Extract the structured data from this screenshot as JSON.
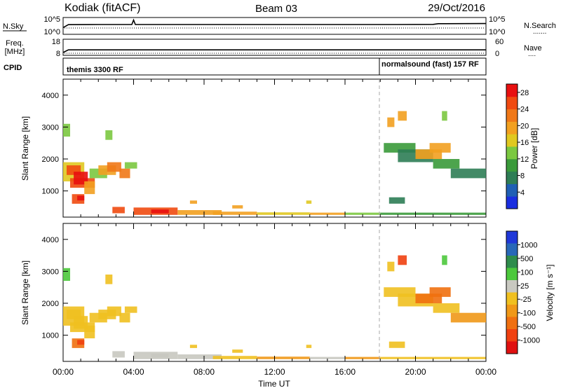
{
  "header": {
    "site": "Kodiak (fitACF)",
    "beam": "Beam 03",
    "date": "29/Oct/2016"
  },
  "noise_panel": {
    "left_label": "N.Sky",
    "right_label": "N.Search",
    "left_ticks": [
      "10^5",
      "10^0"
    ],
    "right_ticks": [
      "10^5",
      "10^0"
    ]
  },
  "freq_panel": {
    "left_label_1": "Freq.",
    "left_label_2": "[MHz]",
    "right_label": "Nave",
    "left_ticks": [
      "18",
      "8"
    ],
    "right_ticks": [
      "60",
      "0"
    ]
  },
  "cpid_panel": {
    "label": "CPID",
    "modes": [
      {
        "text": "themis 3300 RF",
        "start_hour": 0
      },
      {
        "text": "normalsound (fast) 157 RF",
        "start_hour": 18
      }
    ]
  },
  "time_axis": {
    "label": "Time UT",
    "ticks": [
      "00:00",
      "04:00",
      "08:00",
      "12:00",
      "16:00",
      "20:00",
      "00:00"
    ]
  },
  "colors": {
    "power_scale": [
      "#1a2ee0",
      "#1f5fb4",
      "#2e7d55",
      "#3a9a3a",
      "#7bc840",
      "#e0c820",
      "#f2a020",
      "#f07818",
      "#f04a10",
      "#e81010"
    ],
    "velocity_scale": [
      "#2038d8",
      "#2868b8",
      "#2e8c4c",
      "#4cc83c",
      "#c8c8c0",
      "#f0c020",
      "#f09818",
      "#f07010",
      "#f04010",
      "#e01010"
    ]
  },
  "chart_data": [
    {
      "type": "line",
      "title": "N.Sky",
      "x_unit": "hours UT",
      "ylim": [
        1,
        100000
      ],
      "y_scale": "log",
      "series": [
        {
          "x": [
            0,
            0.3,
            2,
            3.9,
            4,
            4.1,
            8,
            12,
            16,
            19,
            21,
            21.3,
            24
          ],
          "y": [
            80,
            900,
            1000,
            1000,
            40000,
            1000,
            1000,
            1000,
            1000,
            1000,
            1100,
            2000,
            2200
          ]
        }
      ]
    },
    {
      "type": "line",
      "title": "Freq.",
      "x_unit": "hours UT",
      "ylim": [
        8,
        18
      ],
      "series": [
        {
          "x": [
            0,
            0.3,
            24
          ],
          "y": [
            8,
            10,
            10
          ]
        }
      ]
    },
    {
      "type": "heatmap",
      "title": "Power [dB]",
      "xlabel": "Time UT",
      "ylabel": "Slant Range [km]",
      "xlim": [
        0,
        24
      ],
      "ylim": [
        180,
        4500
      ],
      "yticks": [
        1000,
        2000,
        3000,
        4000
      ],
      "colorbar": {
        "label": "Power [dB]",
        "ticks": [
          4,
          8,
          12,
          16,
          20,
          24,
          28
        ],
        "range": [
          0,
          30
        ]
      },
      "cells": [
        [
          0.0,
          1.2,
          1300,
          1900,
          16
        ],
        [
          0.2,
          1.0,
          1500,
          1800,
          26
        ],
        [
          0.4,
          1.8,
          1100,
          1400,
          24
        ],
        [
          0.6,
          1.4,
          1200,
          1600,
          28
        ],
        [
          0.5,
          1.2,
          600,
          900,
          25
        ],
        [
          0.8,
          1.2,
          700,
          850,
          28
        ],
        [
          1.5,
          2.5,
          1400,
          1700,
          14
        ],
        [
          2.0,
          3.0,
          1500,
          1800,
          18
        ],
        [
          2.5,
          3.3,
          1600,
          1900,
          22
        ],
        [
          3.2,
          3.8,
          1400,
          1700,
          22
        ],
        [
          3.5,
          4.2,
          1700,
          1900,
          14
        ],
        [
          2.4,
          2.8,
          2600,
          2900,
          12
        ],
        [
          1.2,
          1.8,
          900,
          1300,
          20
        ],
        [
          0.0,
          0.4,
          2700,
          3100,
          12
        ],
        [
          2.8,
          3.5,
          300,
          500,
          24
        ],
        [
          4.0,
          6.5,
          250,
          480,
          26
        ],
        [
          5.0,
          6.0,
          300,
          420,
          28
        ],
        [
          6.5,
          9.0,
          250,
          400,
          20
        ],
        [
          8.5,
          11.0,
          250,
          350,
          18
        ],
        [
          11.0,
          14.0,
          250,
          330,
          16
        ],
        [
          14.0,
          16.0,
          250,
          320,
          18
        ],
        [
          16.0,
          18.0,
          250,
          320,
          14
        ],
        [
          18.0,
          24.0,
          250,
          320,
          10
        ],
        [
          7.2,
          7.6,
          600,
          700,
          18
        ],
        [
          9.6,
          10.2,
          450,
          550,
          18
        ],
        [
          13.8,
          14.1,
          600,
          700,
          16
        ],
        [
          18.2,
          20.0,
          2200,
          2500,
          10
        ],
        [
          19.0,
          21.0,
          1900,
          2300,
          8
        ],
        [
          20.0,
          21.5,
          2000,
          2300,
          20
        ],
        [
          20.8,
          22.0,
          2200,
          2500,
          18
        ],
        [
          21.0,
          22.5,
          1700,
          2000,
          10
        ],
        [
          22.0,
          24.0,
          1400,
          1700,
          8
        ],
        [
          19.0,
          19.5,
          3200,
          3500,
          18
        ],
        [
          21.5,
          21.8,
          3200,
          3500,
          14
        ],
        [
          18.5,
          19.4,
          600,
          800,
          8
        ],
        [
          18.4,
          18.8,
          3000,
          3300,
          20
        ]
      ]
    },
    {
      "type": "heatmap",
      "title": "Velocity [m s^-1]",
      "xlabel": "Time UT",
      "ylabel": "Slant Range [km]",
      "xlim": [
        0,
        24
      ],
      "ylim": [
        180,
        4500
      ],
      "yticks": [
        1000,
        2000,
        3000,
        4000
      ],
      "colorbar": {
        "label": "Velocity [m s^-1]",
        "ticks": [
          1000,
          500,
          100,
          25,
          -25,
          -100,
          -500,
          -1000
        ]
      },
      "cells": [
        [
          0.0,
          1.2,
          1300,
          1900,
          10
        ],
        [
          0.2,
          1.0,
          1500,
          1800,
          0
        ],
        [
          0.4,
          1.8,
          1100,
          1400,
          5
        ],
        [
          0.6,
          1.4,
          1200,
          1600,
          0
        ],
        [
          0.5,
          1.2,
          600,
          900,
          -150
        ],
        [
          0.8,
          1.2,
          700,
          850,
          -400
        ],
        [
          1.5,
          2.5,
          1400,
          1700,
          0
        ],
        [
          2.0,
          3.0,
          1500,
          1800,
          0
        ],
        [
          2.5,
          3.3,
          1600,
          1900,
          0
        ],
        [
          3.2,
          3.8,
          1400,
          1700,
          0
        ],
        [
          3.5,
          4.2,
          1700,
          1900,
          0
        ],
        [
          2.4,
          2.8,
          2600,
          2900,
          0
        ],
        [
          1.2,
          1.8,
          900,
          1300,
          0
        ],
        [
          0.0,
          0.4,
          2700,
          3100,
          150
        ],
        [
          2.8,
          3.5,
          300,
          500,
          60
        ],
        [
          4.0,
          6.5,
          250,
          480,
          80
        ],
        [
          5.0,
          6.0,
          300,
          420,
          40
        ],
        [
          6.5,
          9.0,
          250,
          400,
          60
        ],
        [
          8.5,
          11.0,
          250,
          350,
          20
        ],
        [
          11.0,
          14.0,
          250,
          330,
          -50
        ],
        [
          14.0,
          16.0,
          250,
          320,
          30
        ],
        [
          16.0,
          18.0,
          250,
          320,
          -40
        ],
        [
          18.0,
          24.0,
          250,
          320,
          10
        ],
        [
          7.2,
          7.6,
          600,
          700,
          0
        ],
        [
          9.6,
          10.2,
          450,
          550,
          0
        ],
        [
          13.8,
          14.1,
          600,
          700,
          0
        ],
        [
          18.2,
          20.0,
          2200,
          2500,
          0
        ],
        [
          19.0,
          21.0,
          1900,
          2300,
          0
        ],
        [
          20.0,
          21.5,
          2000,
          2300,
          -200
        ],
        [
          20.8,
          22.0,
          2200,
          2500,
          -120
        ],
        [
          21.0,
          22.5,
          1700,
          2000,
          0
        ],
        [
          22.0,
          24.0,
          1400,
          1700,
          -60
        ],
        [
          19.0,
          19.5,
          3200,
          3500,
          -300
        ],
        [
          21.5,
          21.8,
          3200,
          3500,
          100
        ],
        [
          18.5,
          19.4,
          600,
          800,
          0
        ],
        [
          18.4,
          18.8,
          3000,
          3300,
          0
        ]
      ]
    }
  ]
}
